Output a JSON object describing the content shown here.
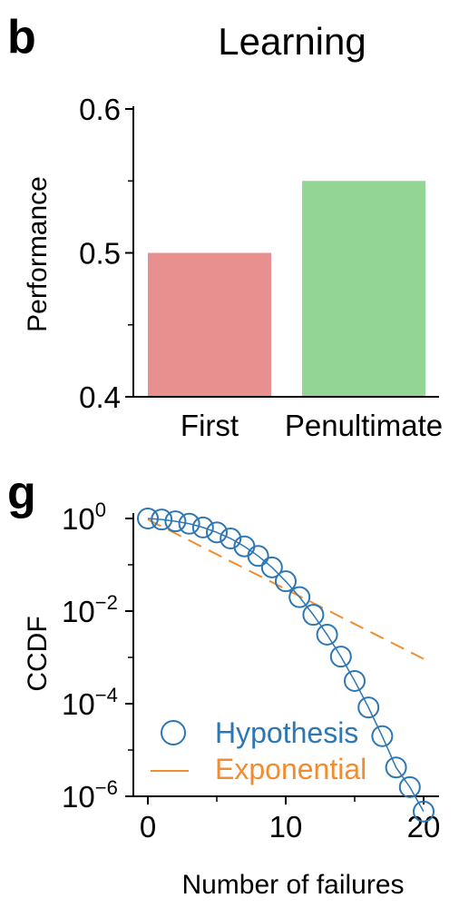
{
  "chart_data": [
    {
      "panel": "b",
      "type": "bar",
      "title": "Learning",
      "xlabel": "",
      "ylabel": "Performance",
      "categories": [
        "First",
        "Penultimate"
      ],
      "values": [
        0.5,
        0.55
      ],
      "colors": [
        "#e8908f",
        "#93d594"
      ],
      "ylim": [
        0.4,
        0.6
      ],
      "yticks": [
        0.4,
        0.5,
        0.6
      ],
      "ytick_labels": [
        "0.4",
        "0.5",
        "0.6"
      ],
      "grid": false
    },
    {
      "panel": "g",
      "type": "line",
      "title": "",
      "xlabel": "Number of failures",
      "ylabel": "CCDF",
      "yscale": "log",
      "xlim": [
        0,
        20
      ],
      "ylim": [
        1e-06,
        1
      ],
      "xticks": [
        0,
        10,
        20
      ],
      "xtick_labels": [
        "0",
        "10",
        "20"
      ],
      "yticks": [
        1,
        0.01,
        0.0001,
        1e-06
      ],
      "ytick_labels": [
        {
          "base": "10",
          "exp": "0"
        },
        {
          "base": "10",
          "exp": "−2"
        },
        {
          "base": "10",
          "exp": "−4"
        },
        {
          "base": "10",
          "exp": "−6"
        }
      ],
      "legend": "bottom-left",
      "grid": false,
      "series": [
        {
          "name": "Hypothesis",
          "style": "open-circles",
          "color": "#2d77b4",
          "x": [
            0,
            1,
            2,
            3,
            4,
            5,
            6,
            7,
            8,
            9,
            10,
            11,
            12,
            13,
            14,
            15,
            16,
            17,
            18,
            19,
            20
          ],
          "y": [
            1.0,
            0.95,
            0.87,
            0.77,
            0.64,
            0.5,
            0.37,
            0.25,
            0.155,
            0.088,
            0.044,
            0.02,
            0.0083,
            0.0031,
            0.00104,
            0.00031,
            8.3e-05,
            1.99e-05,
            4.2e-06,
            1.58e-06,
            4.7e-07
          ]
        },
        {
          "name": "Exponential",
          "style": "dashed",
          "color": "#f38b2f",
          "x": [
            0,
            20
          ],
          "y": [
            0.95,
            0.00093
          ]
        }
      ]
    }
  ]
}
